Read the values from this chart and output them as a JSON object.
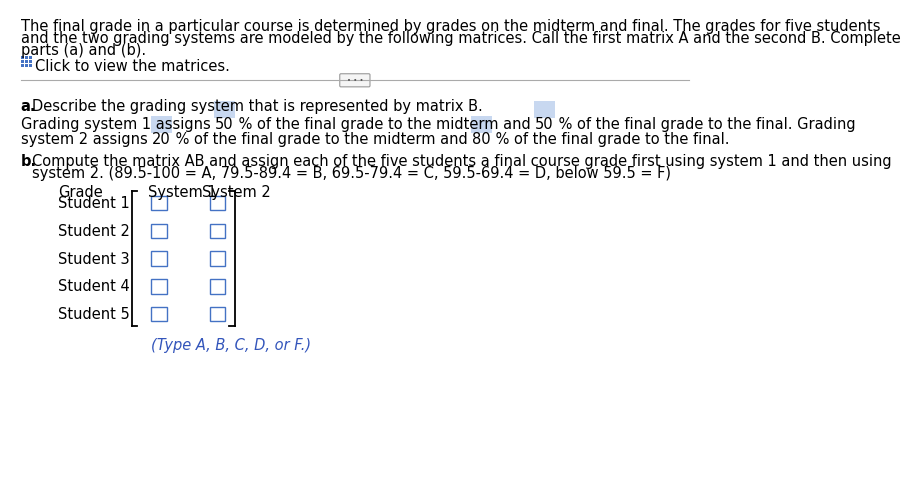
{
  "bg_color": "#ffffff",
  "text_color": "#000000",
  "highlight_color": "#c8d8f0",
  "blue_link_color": "#3355bb",
  "paragraph1_line1": "The final grade in a particular course is determined by grades on the midterm and final. The grades for five students",
  "paragraph1_line2": "and the two grading systems are modeled by the following matrices. Call the first matrix A and the second B. Complete",
  "paragraph1_line3": "parts (a) and (b).",
  "click_text": "Click to view the matrices.",
  "part_a_text": "Describe the grading system that is represented by matrix B.",
  "grading_seg1": "Grading system 1 assigns ",
  "grading_50a": "50",
  "grading_seg2": " % of the final grade to the midterm and ",
  "grading_50b": "50",
  "grading_seg3": " % of the final grade to the final. Grading",
  "grading_seg4": "system 2 assigns ",
  "grading_20": "20",
  "grading_seg5": " % of the final grade to the midterm and ",
  "grading_80": "80",
  "grading_seg6": " % of the final grade to the final.",
  "part_b_line1": "b. Compute the matrix AB and assign each of the five students a final course grade first using system 1 and then using",
  "part_b_line2": "system 2. (89.5-100 = A, 79.5-89.4 = B, 69.5-79.4 = C, 59.5-69.4 = D, below 59.5 = F)",
  "col_headers": [
    "Grade",
    "System 1",
    "System 2"
  ],
  "row_labels": [
    "Student 1",
    "Student 2",
    "Student 3",
    "Student 4",
    "Student 5"
  ],
  "type_note": "(Type A, B, C, D, or F.)",
  "font_size_body": 10.5,
  "highlight_color_rgb": "#c8d8f0"
}
